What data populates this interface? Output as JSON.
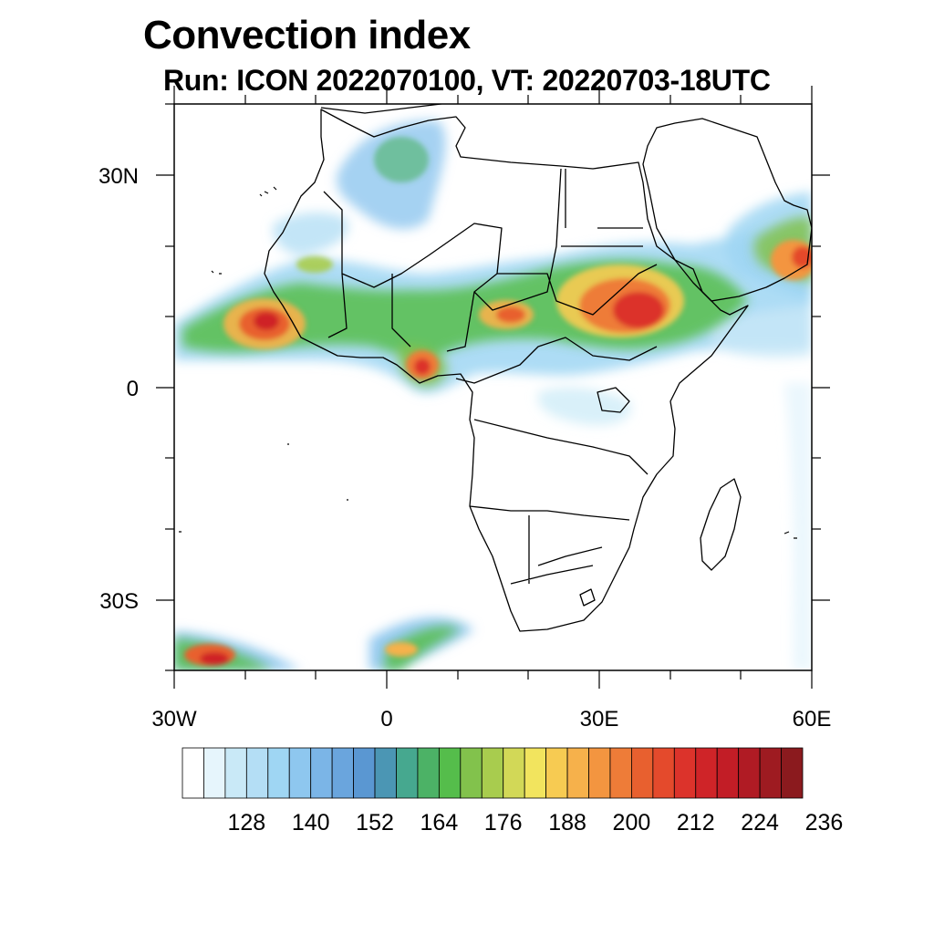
{
  "title": "Convection index",
  "subtitle": "Run: ICON 2022070100,  VT: 20220703-18UTC",
  "map": {
    "lat_labels": [
      "30N",
      "0",
      "30S"
    ],
    "lon_labels": [
      "30W",
      "0",
      "30E",
      "60E"
    ],
    "extent": {
      "lon": [
        -30,
        60
      ],
      "lat": [
        -40,
        40
      ]
    }
  },
  "colorbar": {
    "labels": [
      "128",
      "140",
      "152",
      "164",
      "176",
      "188",
      "200",
      "212",
      "224",
      "236"
    ],
    "colors": [
      "#ffffff",
      "#e6f5fc",
      "#c9e9f7",
      "#b4def5",
      "#9fd6f3",
      "#8ec7ef",
      "#7bb5e7",
      "#6aa5dd",
      "#5a97d2",
      "#4b96b4",
      "#46a88f",
      "#4cb266",
      "#55bd4b",
      "#82c24c",
      "#a8cc4e",
      "#d2d857",
      "#f2e45e",
      "#f7cb52",
      "#f6b14b",
      "#f39540",
      "#ee7c38",
      "#e8602f",
      "#e44a2c",
      "#dc332b",
      "#cf2428",
      "#c21d26",
      "#b01b24",
      "#9e1b21",
      "#8b1a1e"
    ]
  },
  "fields": {
    "land_color": "#ffffff",
    "coast_color": "#000000"
  }
}
